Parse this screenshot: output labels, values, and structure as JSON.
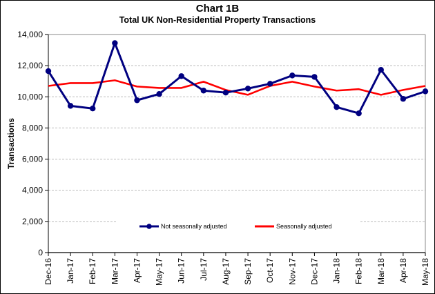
{
  "chart_data": {
    "type": "line",
    "title": "Chart 1B",
    "subtitle": "Total UK Non-Residential Property Transactions",
    "xlabel": "",
    "ylabel": "Transactions",
    "ylim": [
      0,
      14000
    ],
    "yticks": [
      0,
      2000,
      4000,
      6000,
      8000,
      10000,
      12000,
      14000
    ],
    "ytick_labels": [
      "0",
      "2,000",
      "4,000",
      "6,000",
      "8,000",
      "10,000",
      "12,000",
      "14,000"
    ],
    "grid": "horizontal dashed",
    "legend_position": "bottom-center inside plot",
    "categories": [
      "Dec-16",
      "Jan-17",
      "Feb-17",
      "Mar-17",
      "Apr-17",
      "May-17",
      "Jun-17",
      "Jul-17",
      "Aug-17",
      "Sep-17",
      "Oct-17",
      "Nov-17",
      "Dec-17",
      "Jan-18",
      "Feb-18",
      "Mar-18",
      "Apr-18",
      "May-18"
    ],
    "series": [
      {
        "name": "Not seasonally adjusted",
        "color": "#000080",
        "markers": true,
        "values": [
          11650,
          9420,
          9250,
          13450,
          9780,
          10180,
          11330,
          10400,
          10270,
          10530,
          10840,
          11370,
          11280,
          9340,
          8940,
          11730,
          9870,
          10350
        ]
      },
      {
        "name": "Seasonally adjusted",
        "color": "#ff0000",
        "markers": false,
        "values": [
          10700,
          10880,
          10880,
          11060,
          10660,
          10570,
          10570,
          10970,
          10440,
          10130,
          10700,
          10970,
          10660,
          10400,
          10490,
          10130,
          10440,
          10700
        ]
      }
    ]
  }
}
